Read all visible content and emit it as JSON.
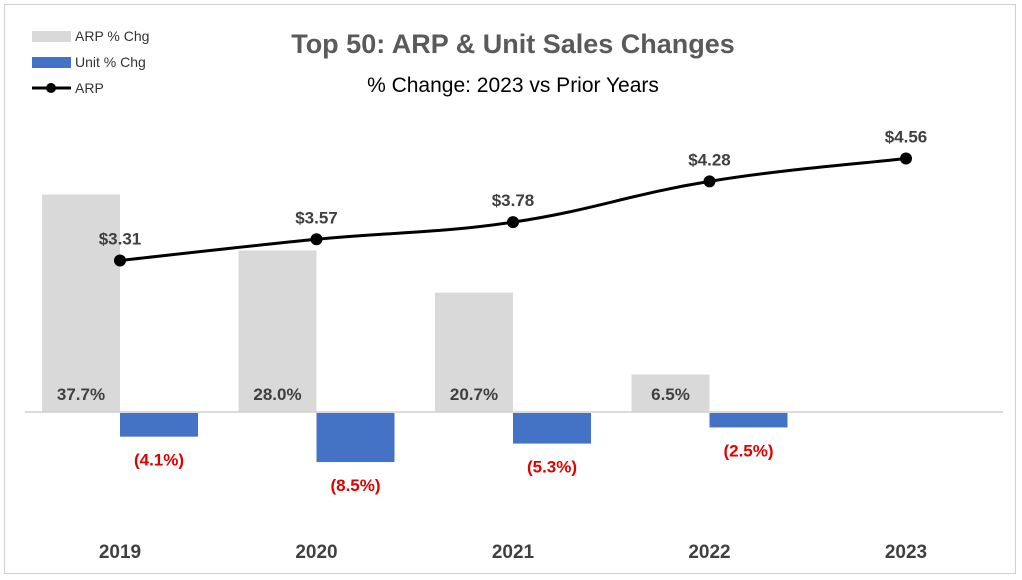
{
  "chart_data": {
    "type": "bar",
    "title": "Top 50:  ARP & Unit Sales Changes",
    "subtitle": "% Change:  2023 vs Prior Years",
    "categories": [
      "2019",
      "2020",
      "2021",
      "2022",
      "2023"
    ],
    "series": [
      {
        "name": "ARP % Chg",
        "kind": "bar",
        "color": "#d9d9d9",
        "values": [
          37.7,
          28.0,
          20.7,
          6.5,
          null
        ],
        "labels": [
          "37.7%",
          "28.0%",
          "20.7%",
          "6.5%",
          ""
        ]
      },
      {
        "name": "Unit % Chg",
        "kind": "bar",
        "color": "#4472c4",
        "values": [
          -4.1,
          -8.5,
          -5.3,
          -2.5,
          null
        ],
        "labels": [
          "(4.1%)",
          "(8.5%)",
          "(5.3%)",
          "(2.5%)",
          ""
        ]
      },
      {
        "name": "ARP",
        "kind": "line",
        "color": "#000000",
        "values": [
          3.31,
          3.57,
          3.78,
          4.28,
          4.56
        ],
        "labels": [
          "$3.31",
          "$3.57",
          "$3.78",
          "$4.28",
          "$4.56"
        ]
      }
    ],
    "legend_position": "top-left",
    "grid": false,
    "label_color_negative": "#e00000"
  }
}
